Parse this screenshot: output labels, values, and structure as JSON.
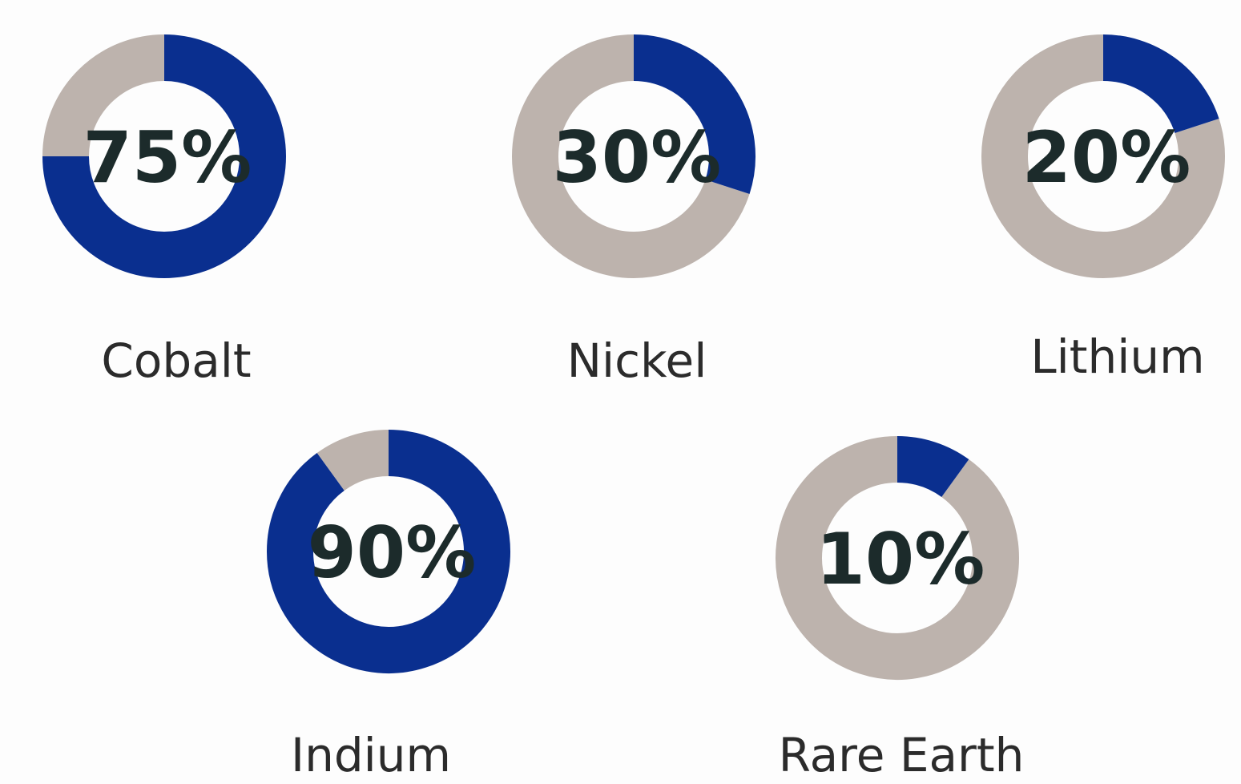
{
  "chart_data": [
    {
      "type": "pie",
      "label": "Cobalt",
      "value": 75,
      "value_label": "75%"
    },
    {
      "type": "pie",
      "label": "Nickel",
      "value": 30,
      "value_label": "30%"
    },
    {
      "type": "pie",
      "label": "Lithium",
      "value": 20,
      "value_label": "20%"
    },
    {
      "type": "pie",
      "label": "Indium",
      "value": 90,
      "value_label": "90%"
    },
    {
      "type": "pie",
      "label": "Rare Earth",
      "value": 10,
      "value_label": "10%"
    }
  ],
  "colors": {
    "filled": "#0a2f8f",
    "remainder": "#bdb3ad",
    "background": "#fdfdfd"
  }
}
